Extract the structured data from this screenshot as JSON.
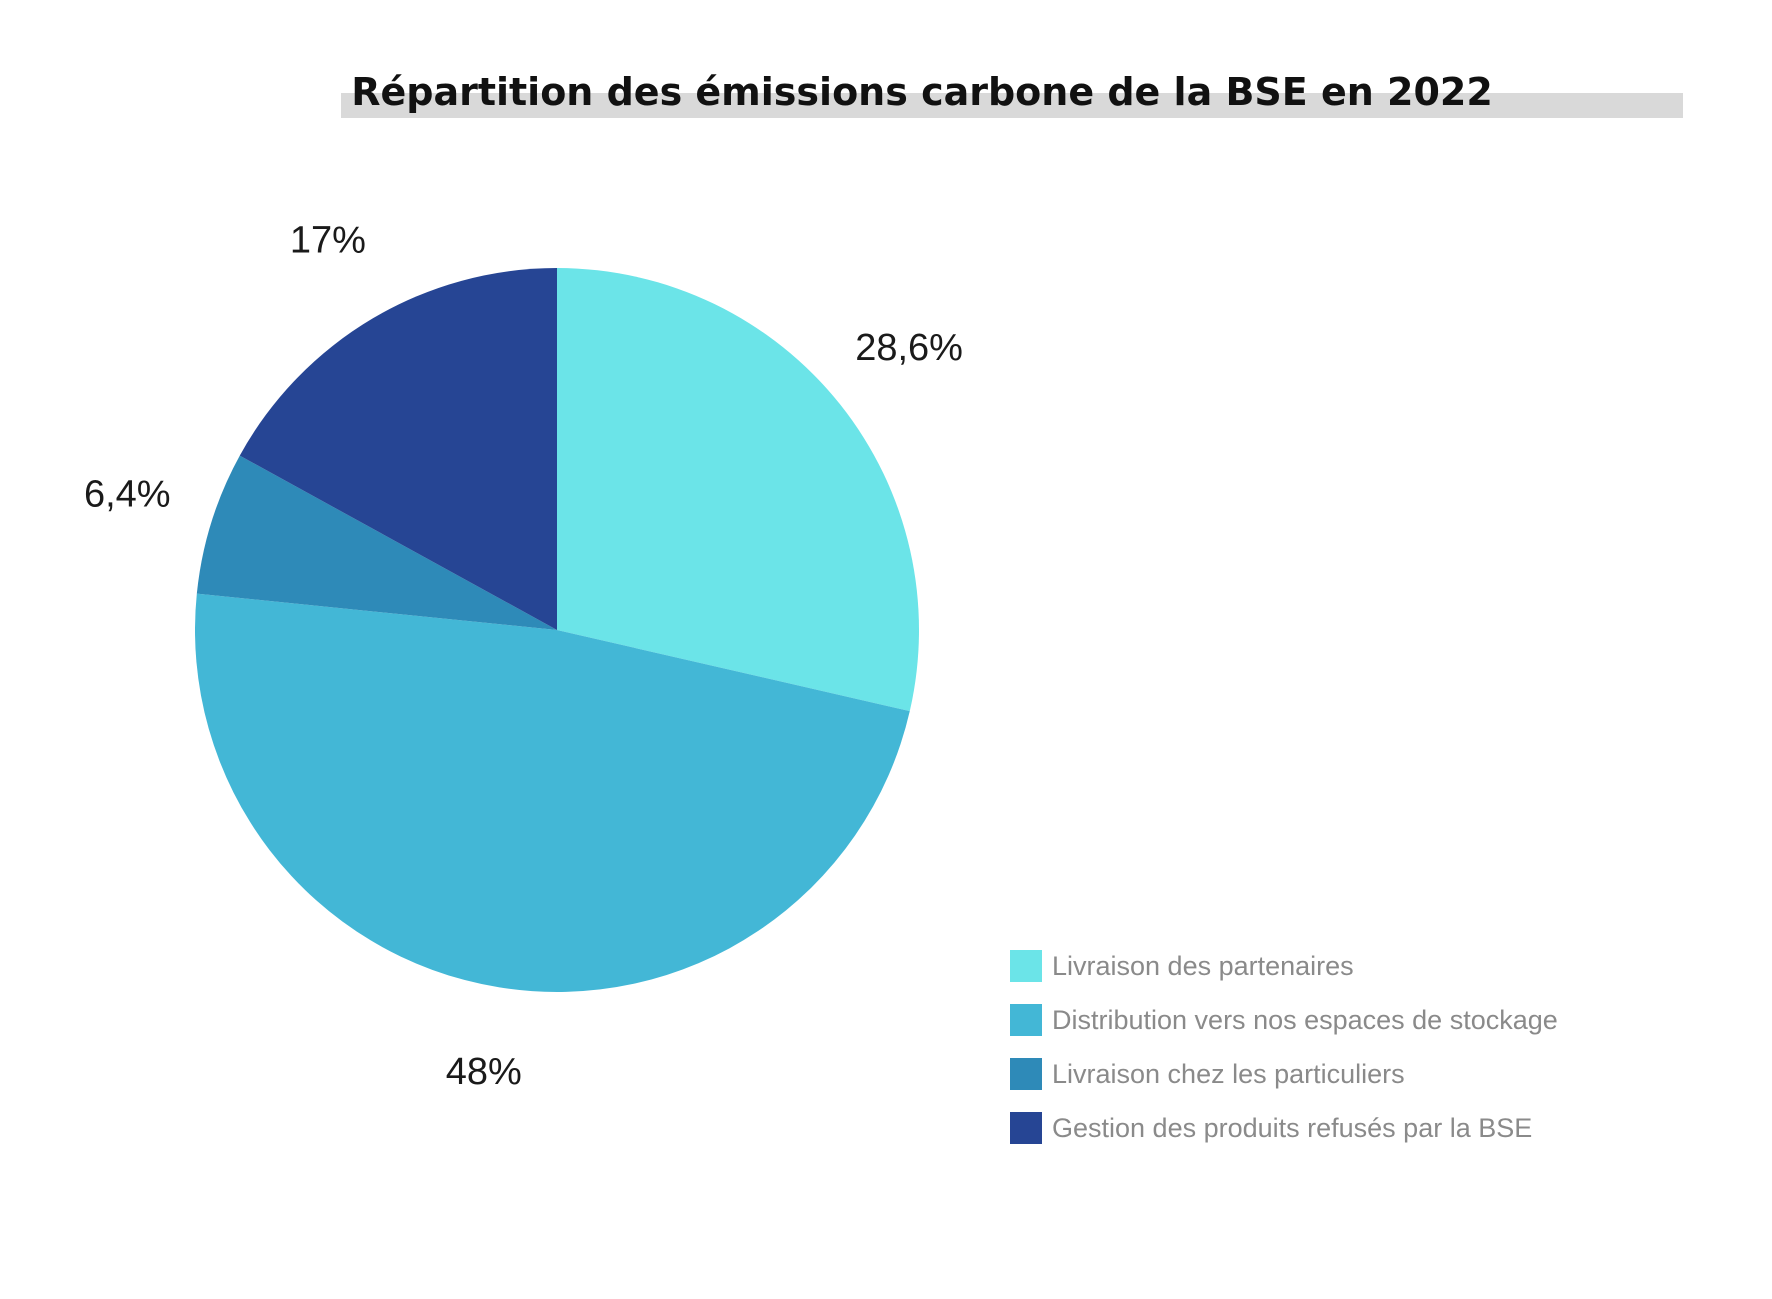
{
  "title": "Répartition des émissions carbone de la BSE en 2022",
  "chart_data": {
    "type": "pie",
    "title": "Répartition des émissions carbone de la BSE en 2022",
    "categories": [
      "Livraison des partenaires",
      "Distribution vers nos espaces de stockage",
      "Livraison chez les particuliers",
      "Gestion des produits refusés par la BSE"
    ],
    "values": [
      28.6,
      48,
      6.4,
      17
    ],
    "data_labels": [
      "28,6%",
      "48%",
      "6,4%",
      "17%"
    ],
    "colors": [
      "#6be4e8",
      "#43b7d6",
      "#2e8ab8",
      "#264594"
    ],
    "legend_position": "bottom-right"
  }
}
